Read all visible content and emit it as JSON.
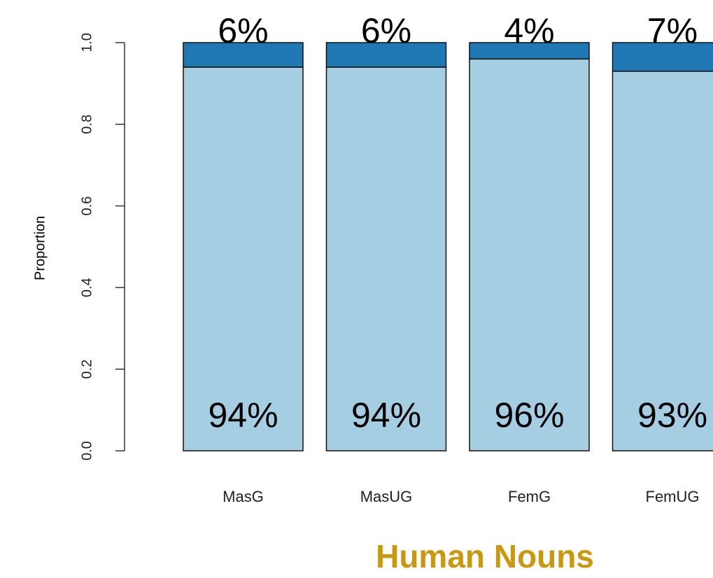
{
  "chart_data": {
    "type": "stacked_bar",
    "xlabel": "Human Nouns",
    "ylabel": "Proportion",
    "categories": [
      "MasG",
      "MasUG",
      "FemG",
      "FemUG"
    ],
    "series": [
      {
        "color": "#a6cee3",
        "values": [
          0.94,
          0.94,
          0.96,
          0.93
        ],
        "value_labels": [
          "94%",
          "94%",
          "96%",
          "93%"
        ]
      },
      {
        "color": "#1f78b4",
        "values": [
          0.06,
          0.06,
          0.04,
          0.07
        ],
        "value_labels": [
          "6%",
          "6%",
          "4%",
          "7%"
        ]
      }
    ],
    "ylim": [
      0,
      1
    ],
    "yticks": [
      {
        "value": 0,
        "label": "0.0"
      },
      0.2,
      0.4,
      0.6,
      0.8,
      {
        "value": 1,
        "label": "1.0"
      }
    ]
  }
}
